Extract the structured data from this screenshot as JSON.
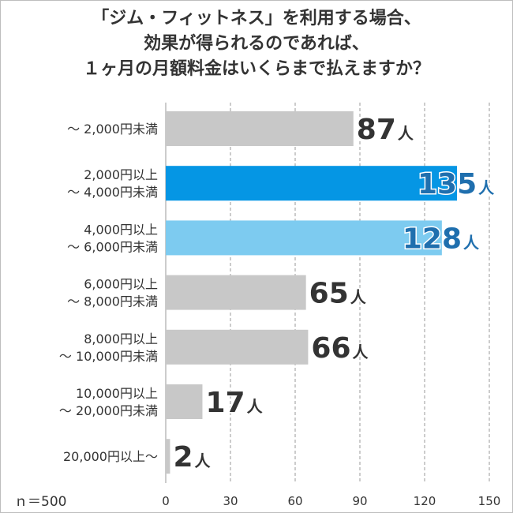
{
  "chart_data": {
    "type": "bar",
    "orientation": "horizontal",
    "title_lines": [
      "「ジム・フィットネス」を利用する場合、",
      "効果が得られるのであれば、",
      "１ヶ月の月額料金はいくらまで払えますか？"
    ],
    "categories": [
      [
        "〜 2,000円未満"
      ],
      [
        "2,000円以上",
        "〜 4,000円未満"
      ],
      [
        "4,000円以上",
        "〜 6,000円未満"
      ],
      [
        "6,000円以上",
        "〜 8,000円未満"
      ],
      [
        "8,000円以上",
        "〜 10,000円未満"
      ],
      [
        "10,000円以上",
        "〜 20,000円未満"
      ],
      [
        "20,000円以上〜"
      ]
    ],
    "values": [
      87,
      135,
      128,
      65,
      66,
      17,
      2
    ],
    "unit": "人",
    "xlim": [
      0,
      150
    ],
    "xticks": [
      0,
      30,
      60,
      90,
      120,
      150
    ],
    "grid": "vertical dashed",
    "bar_colors": [
      "#c8c8c8",
      "#0596e4",
      "#7dcbf0",
      "#c8c8c8",
      "#c8c8c8",
      "#c8c8c8",
      "#c8c8c8"
    ],
    "highlight_label_color": "#1f6fae",
    "default_label_color": "#333333"
  },
  "footer": {
    "sample_size": "ｎ＝500"
  }
}
